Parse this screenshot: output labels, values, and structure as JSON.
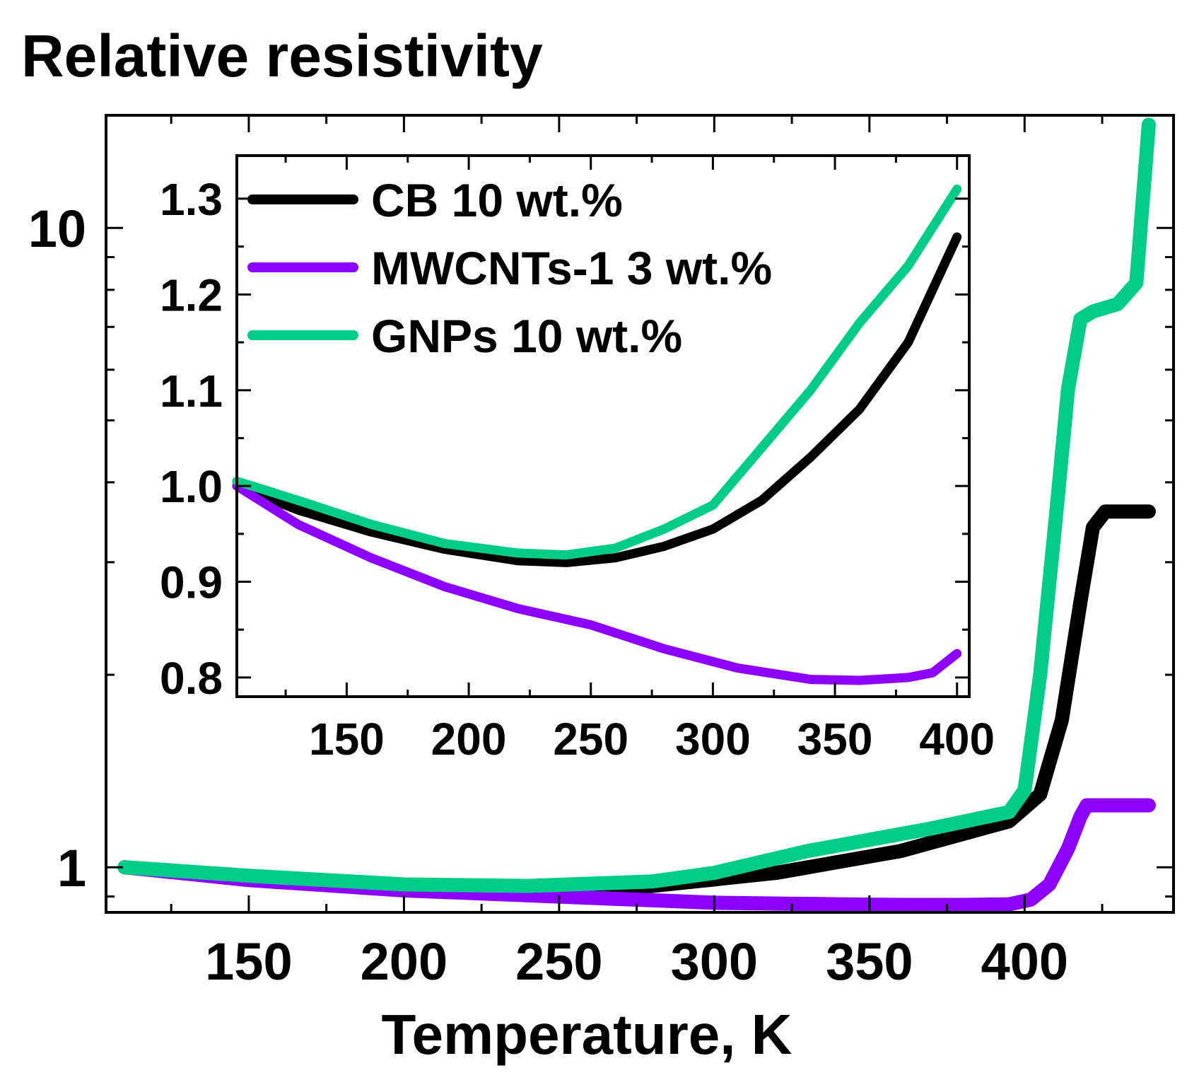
{
  "chart_data": [
    {
      "type": "line",
      "id": "main",
      "title": "Relative resistivity",
      "xlabel": "Temperature, K",
      "ylabel": "",
      "yscale": "log",
      "xlim": [
        104,
        448
      ],
      "ylim": [
        0.85,
        15
      ],
      "x_ticks": [
        150,
        200,
        250,
        300,
        350,
        400
      ],
      "x_tick_labels": [
        "150",
        "200",
        "250",
        "300",
        "350",
        "400"
      ],
      "y_ticks": [
        1,
        10
      ],
      "y_tick_labels": [
        "1",
        "10"
      ],
      "series": [
        {
          "name": "CB 10 wt.%",
          "color": "#000000",
          "x": [
            110,
            150,
            200,
            240,
            280,
            320,
            360,
            395,
            405,
            412,
            418,
            422,
            426,
            440
          ],
          "y": [
            1.0,
            0.96,
            0.93,
            0.92,
            0.935,
            0.98,
            1.06,
            1.18,
            1.3,
            1.7,
            2.6,
            3.4,
            3.6,
            3.6
          ]
        },
        {
          "name": "MWCNTs-1 3 wt.%",
          "color": "#8B00FF",
          "x": [
            110,
            150,
            200,
            250,
            300,
            340,
            360,
            380,
            395,
            402,
            408,
            414,
            418,
            420,
            426,
            440
          ],
          "y": [
            1.0,
            0.955,
            0.92,
            0.9,
            0.88,
            0.875,
            0.873,
            0.873,
            0.875,
            0.89,
            0.94,
            1.07,
            1.2,
            1.25,
            1.25,
            1.25
          ]
        },
        {
          "name": "GNPs 10 wt.%",
          "color": "#00CC88",
          "x": [
            110,
            150,
            200,
            240,
            280,
            300,
            330,
            370,
            395,
            400,
            405,
            410,
            414,
            418,
            422,
            430,
            436,
            440
          ],
          "y": [
            1.0,
            0.97,
            0.94,
            0.935,
            0.95,
            0.98,
            1.06,
            1.15,
            1.22,
            1.32,
            2.0,
            3.5,
            5.6,
            7.2,
            7.4,
            7.6,
            8.2,
            14.5
          ]
        }
      ]
    },
    {
      "type": "line",
      "id": "inset",
      "xlabel": "",
      "ylabel": "",
      "xlim": [
        105,
        405
      ],
      "ylim": [
        0.78,
        1.345
      ],
      "x_ticks": [
        150,
        200,
        250,
        300,
        350,
        400
      ],
      "x_tick_labels": [
        "150",
        "200",
        "250",
        "300",
        "350",
        "400"
      ],
      "y_ticks": [
        0.8,
        0.9,
        1.0,
        1.1,
        1.2,
        1.3
      ],
      "y_tick_labels": [
        "0.8",
        "0.9",
        "1.0",
        "1.1",
        "1.2",
        "1.3"
      ],
      "legend": {
        "position": "top-left",
        "entries": [
          "CB 10 wt.%",
          "MWCNTs-1 3 wt.%",
          "GNPs 10 wt.%"
        ]
      },
      "series": [
        {
          "name": "CB 10 wt.%",
          "color": "#000000",
          "x": [
            105,
            130,
            160,
            190,
            220,
            240,
            260,
            280,
            300,
            320,
            340,
            360,
            380,
            400
          ],
          "y": [
            1.0,
            0.975,
            0.952,
            0.934,
            0.922,
            0.92,
            0.925,
            0.937,
            0.955,
            0.985,
            1.03,
            1.08,
            1.15,
            1.26
          ]
        },
        {
          "name": "MWCNTs-1 3 wt.%",
          "color": "#8B00FF",
          "x": [
            105,
            130,
            160,
            190,
            220,
            250,
            280,
            310,
            340,
            360,
            380,
            390,
            400
          ],
          "y": [
            1.0,
            0.96,
            0.925,
            0.895,
            0.872,
            0.855,
            0.83,
            0.81,
            0.798,
            0.797,
            0.8,
            0.805,
            0.825
          ]
        },
        {
          "name": "GNPs 10 wt.%",
          "color": "#00CC88",
          "x": [
            105,
            130,
            160,
            190,
            220,
            240,
            260,
            280,
            300,
            320,
            340,
            360,
            380,
            400
          ],
          "y": [
            1.005,
            0.985,
            0.96,
            0.94,
            0.93,
            0.928,
            0.935,
            0.955,
            0.98,
            1.04,
            1.1,
            1.17,
            1.23,
            1.31
          ]
        }
      ]
    }
  ]
}
